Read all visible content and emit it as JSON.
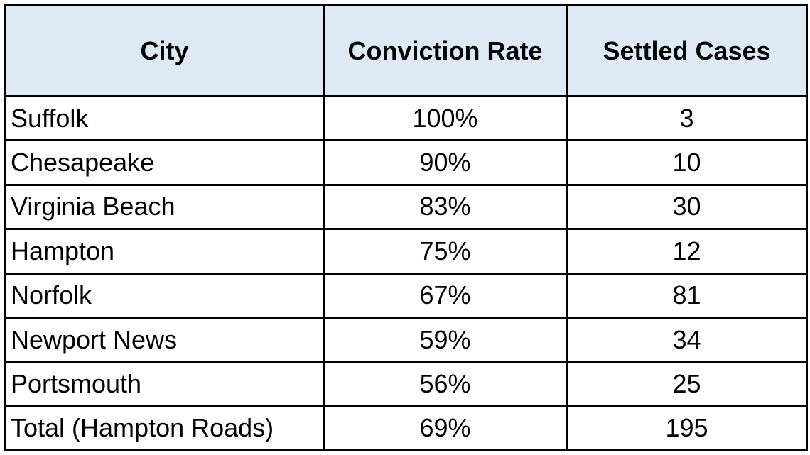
{
  "chart_data": {
    "type": "table",
    "columns": [
      "City",
      "Conviction Rate",
      "Settled Cases"
    ],
    "rows": [
      {
        "city": "Suffolk",
        "conviction_rate": "100%",
        "settled_cases": "3"
      },
      {
        "city": "Chesapeake",
        "conviction_rate": "90%",
        "settled_cases": "10"
      },
      {
        "city": "Virginia Beach",
        "conviction_rate": "83%",
        "settled_cases": "30"
      },
      {
        "city": "Hampton",
        "conviction_rate": "75%",
        "settled_cases": "12"
      },
      {
        "city": "Norfolk",
        "conviction_rate": "67%",
        "settled_cases": "81"
      },
      {
        "city": "Newport News",
        "conviction_rate": "59%",
        "settled_cases": "34"
      },
      {
        "city": "Portsmouth",
        "conviction_rate": "56%",
        "settled_cases": "25"
      },
      {
        "city": "Total (Hampton Roads)",
        "conviction_rate": "69%",
        "settled_cases": "195"
      }
    ]
  },
  "colors": {
    "header_background": "#dde9f5",
    "border": "#000000",
    "text": "#000000"
  }
}
